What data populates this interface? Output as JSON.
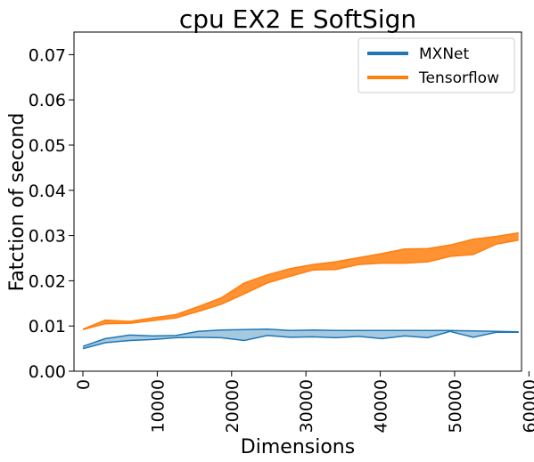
{
  "chart_data": {
    "type": "line",
    "title": "cpu EX2 E SoftSign",
    "xlabel": "Dimensions",
    "ylabel": "Fatction of second",
    "xlim": [
      -1200,
      59000
    ],
    "ylim": [
      0.0,
      0.075
    ],
    "xticks": [
      0,
      10000,
      20000,
      30000,
      40000,
      50000,
      60000
    ],
    "xtick_labels": [
      "0",
      "10000",
      "20000",
      "30000",
      "40000",
      "50000",
      "60000"
    ],
    "yticks": [
      0.0,
      0.01,
      0.02,
      0.03,
      0.04,
      0.05,
      0.06,
      0.07
    ],
    "ytick_labels": [
      "0.00",
      "0.01",
      "0.02",
      "0.03",
      "0.04",
      "0.05",
      "0.06",
      "0.07"
    ],
    "grid": false,
    "legend_position": "top-right",
    "x": [
      0,
      3000,
      6300,
      9400,
      12500,
      15500,
      18600,
      21700,
      24800,
      27900,
      31000,
      34000,
      37100,
      40200,
      43300,
      46400,
      49400,
      52500,
      55600,
      58600
    ],
    "series": [
      {
        "name": "MXNet",
        "color": "#1f77b4",
        "upper": [
          0.0055,
          0.0072,
          0.008,
          0.0078,
          0.0079,
          0.0088,
          0.0091,
          0.0092,
          0.0093,
          0.009,
          0.0091,
          0.009,
          0.009,
          0.009,
          0.009,
          0.009,
          0.009,
          0.0089,
          0.0088,
          0.0087
        ],
        "lower": [
          0.005,
          0.0063,
          0.0068,
          0.007,
          0.0074,
          0.0075,
          0.0074,
          0.0068,
          0.0079,
          0.0075,
          0.0076,
          0.0074,
          0.0077,
          0.0072,
          0.0078,
          0.0074,
          0.0088,
          0.0075,
          0.0086,
          0.0086
        ]
      },
      {
        "name": "Tensorflow",
        "color": "#ff7f0e",
        "upper": [
          0.0093,
          0.0113,
          0.011,
          0.0118,
          0.0125,
          0.0143,
          0.0162,
          0.0195,
          0.0213,
          0.0227,
          0.0236,
          0.0242,
          0.0251,
          0.026,
          0.027,
          0.0271,
          0.0279,
          0.0292,
          0.0298,
          0.0306
        ],
        "lower": [
          0.0092,
          0.0105,
          0.0106,
          0.0112,
          0.0118,
          0.0132,
          0.0148,
          0.0171,
          0.0195,
          0.021,
          0.0224,
          0.0225,
          0.0236,
          0.0239,
          0.0239,
          0.0242,
          0.0254,
          0.0258,
          0.0281,
          0.029
        ]
      }
    ]
  }
}
